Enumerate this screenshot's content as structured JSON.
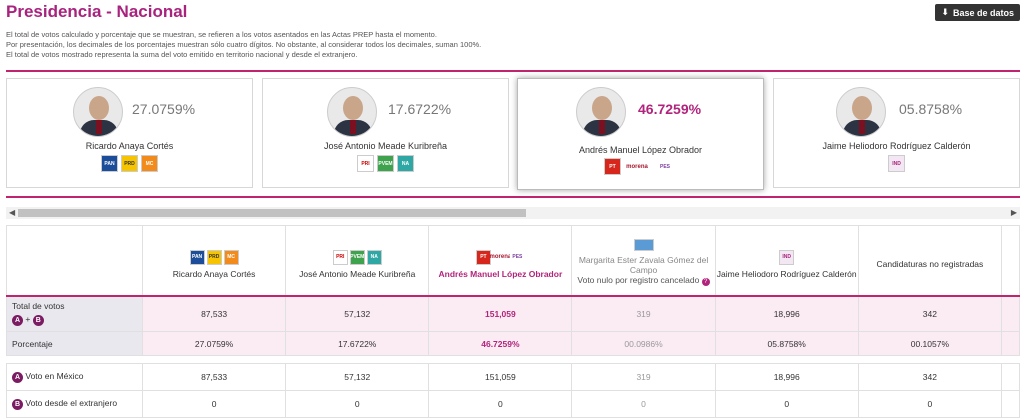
{
  "header": {
    "title": "Presidencia - Nacional",
    "db_button": "Base de datos",
    "notes": [
      "El total de votos calculado y porcentaje que se muestran, se refieren a los votos asentados en las Actas PREP hasta el momento.",
      "Por presentación, los decimales de los porcentajes muestran sólo cuatro dígitos. No obstante, al considerar todos los decimales, suman 100%.",
      "El total de votos mostrado representa la suma del voto emitido en territorio nacional y desde el extranjero."
    ]
  },
  "cards": [
    {
      "name": "Ricardo Anaya Cortés",
      "pct": "27.0759%",
      "logos": [
        "PAN",
        "PRD",
        "MC"
      ]
    },
    {
      "name": "José Antonio Meade Kuribreña",
      "pct": "17.6722%",
      "logos": [
        "PRI",
        "PVEM",
        "NA"
      ]
    },
    {
      "name": "Andrés Manuel López Obrador",
      "pct": "46.7259%",
      "logos": [
        "PT",
        "morena",
        "PES"
      ]
    },
    {
      "name": "Jaime Heliodoro Rodríguez Calderón",
      "pct": "05.8758%",
      "logos": [
        "IND"
      ]
    }
  ],
  "table": {
    "headers": [
      {
        "name": "Ricardo Anaya Cortés"
      },
      {
        "name": "José Antonio Meade Kuribreña"
      },
      {
        "name": "Andrés Manuel López Obrador"
      },
      {
        "name": "Margarita Ester Zavala Gómez del Campo",
        "note": "Voto nulo por registro cancelado"
      },
      {
        "name": "Jaime Heliodoro Rodríguez Calderón"
      },
      {
        "name": "Candidaturas no registradas"
      }
    ],
    "rows": {
      "total": {
        "label": "Total de votos",
        "sub_a": "A",
        "sub_plus": "+",
        "sub_b": "B",
        "values": [
          "87,533",
          "57,132",
          "151,059",
          "319",
          "18,996",
          "342"
        ]
      },
      "perc": {
        "label": "Porcentaje",
        "values": [
          "27.0759%",
          "17.6722%",
          "46.7259%",
          "00.0986%",
          "05.8758%",
          "00.1057%"
        ]
      },
      "mexico": {
        "badge": "A",
        "label": "Voto en México",
        "values": [
          "87,533",
          "57,132",
          "151,059",
          "319",
          "18,996",
          "342"
        ]
      },
      "abroad": {
        "badge": "B",
        "label": "Voto desde el extranjero",
        "values": [
          "0",
          "0",
          "0",
          "0",
          "0",
          "0"
        ]
      }
    }
  },
  "colors": {
    "accent": "#a8237e",
    "line": "#c0246e"
  },
  "icons": [
    "download-icon",
    "chevron-left-icon",
    "chevron-right-icon",
    "question-icon"
  ]
}
